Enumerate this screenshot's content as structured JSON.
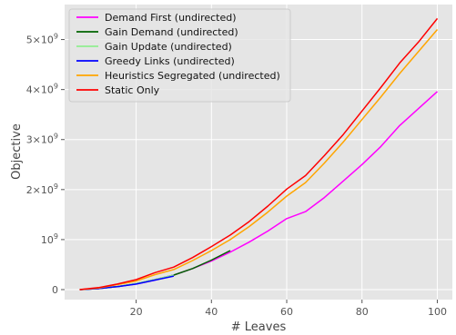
{
  "chart_data": {
    "type": "line",
    "title": "",
    "xlabel": "# Leaves",
    "ylabel": "Objective",
    "xlim": [
      1,
      104
    ],
    "ylim": [
      -200000000,
      5700000000
    ],
    "x_ticks": [
      20,
      40,
      60,
      80,
      100
    ],
    "y_ticks": [
      0,
      1000000000,
      2000000000,
      3000000000,
      4000000000,
      5000000000
    ],
    "y_tick_labels": [
      {
        "base": "0",
        "exp": ""
      },
      {
        "base": "10",
        "exp": "9"
      },
      {
        "base": "2×10",
        "exp": "9"
      },
      {
        "base": "3×10",
        "exp": "9"
      },
      {
        "base": "4×10",
        "exp": "9"
      },
      {
        "base": "5×10",
        "exp": "9"
      }
    ],
    "grid": true,
    "legend_position": "top-left",
    "series": [
      {
        "name": "Demand First (undirected)",
        "color": "#ff00ff",
        "x": [
          5,
          10,
          15,
          20,
          25,
          30,
          35,
          40,
          45,
          50,
          55,
          60,
          65,
          70,
          75,
          80,
          85,
          90,
          95,
          100
        ],
        "y": [
          0,
          20000000,
          60000000,
          110000000,
          190000000,
          290000000,
          420000000,
          570000000,
          750000000,
          950000000,
          1170000000,
          1420000000,
          1560000000,
          1840000000,
          2170000000,
          2500000000,
          2860000000,
          3280000000,
          3620000000,
          3960000000
        ]
      },
      {
        "name": "Gain Demand (undirected)",
        "color": "#006400",
        "x": [
          5,
          10,
          15,
          20,
          25,
          30,
          35,
          40,
          45
        ],
        "y": [
          0,
          20000000,
          60000000,
          120000000,
          200000000,
          290000000,
          420000000,
          590000000,
          780000000
        ]
      },
      {
        "name": "Gain Update (undirected)",
        "color": "#90ee90",
        "x": [
          5,
          10,
          15,
          20,
          25,
          30
        ],
        "y": [
          0,
          20000000,
          60000000,
          120000000,
          200000000,
          290000000
        ]
      },
      {
        "name": "Greedy Links (undirected)",
        "color": "#0000ff",
        "x": [
          5,
          10,
          15,
          20,
          25,
          30
        ],
        "y": [
          0,
          20000000,
          60000000,
          110000000,
          190000000,
          270000000
        ]
      },
      {
        "name": "Heuristics Segregated (undirected)",
        "color": "#ffa500",
        "x": [
          5,
          10,
          15,
          20,
          25,
          30,
          35,
          40,
          45,
          50,
          55,
          60,
          65,
          70,
          75,
          80,
          85,
          90,
          95,
          100
        ],
        "y": [
          0,
          30000000,
          100000000,
          170000000,
          300000000,
          400000000,
          580000000,
          780000000,
          1000000000,
          1260000000,
          1550000000,
          1870000000,
          2140000000,
          2530000000,
          2950000000,
          3400000000,
          3850000000,
          4320000000,
          4760000000,
          5200000000
        ]
      },
      {
        "name": "Static Only",
        "color": "#ff0000",
        "x": [
          5,
          10,
          15,
          20,
          25,
          30,
          35,
          40,
          45,
          50,
          55,
          60,
          65,
          70,
          75,
          80,
          85,
          90,
          95,
          100
        ],
        "y": [
          0,
          40000000,
          110000000,
          200000000,
          340000000,
          450000000,
          640000000,
          860000000,
          1090000000,
          1360000000,
          1670000000,
          2010000000,
          2280000000,
          2680000000,
          3100000000,
          3570000000,
          4040000000,
          4530000000,
          4950000000,
          5420000000
        ]
      }
    ]
  }
}
